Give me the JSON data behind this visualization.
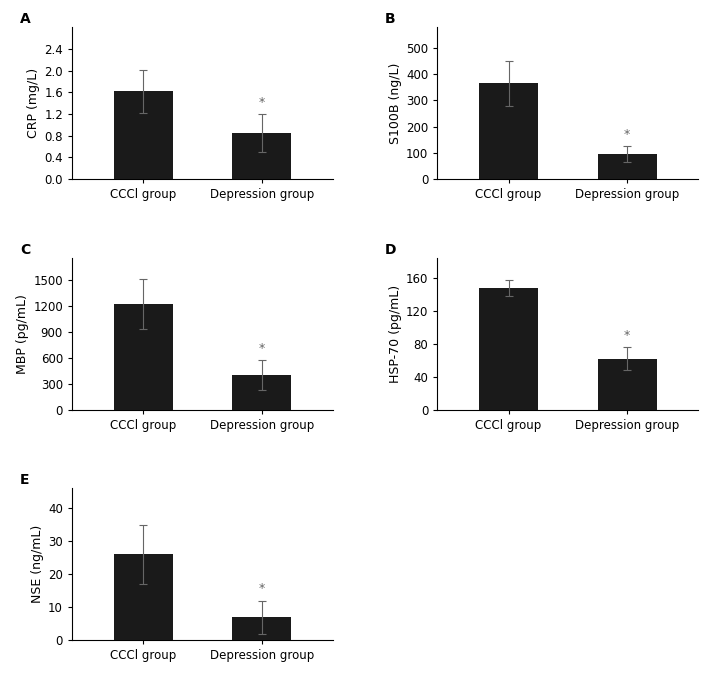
{
  "subplots": [
    {
      "label": "A",
      "ylabel": "CRP (mg/L)",
      "categories": [
        "CCCl group",
        "Depression group"
      ],
      "values": [
        1.62,
        0.85
      ],
      "errors": [
        0.4,
        0.35
      ],
      "ylim": [
        0,
        2.8
      ],
      "yticks": [
        0.0,
        0.4,
        0.8,
        1.2,
        1.6,
        2.0,
        2.4
      ],
      "star_idx": 1
    },
    {
      "label": "B",
      "ylabel": "S100B (ng/L)",
      "categories": [
        "CCCl group",
        "Depression group"
      ],
      "values": [
        365,
        95
      ],
      "errors": [
        85,
        30
      ],
      "ylim": [
        0,
        580
      ],
      "yticks": [
        0,
        100,
        200,
        300,
        400,
        500
      ],
      "star_idx": 1
    },
    {
      "label": "C",
      "ylabel": "MBP (pg/mL)",
      "categories": [
        "CCCl group",
        "Depression group"
      ],
      "values": [
        1220,
        400
      ],
      "errors": [
        290,
        170
      ],
      "ylim": [
        0,
        1750
      ],
      "yticks": [
        0,
        300,
        600,
        900,
        1200,
        1500
      ],
      "star_idx": 1
    },
    {
      "label": "D",
      "ylabel": "HSP-70 (pg/mL)",
      "categories": [
        "CCCl group",
        "Depression group"
      ],
      "values": [
        148,
        62
      ],
      "errors": [
        10,
        14
      ],
      "ylim": [
        0,
        185
      ],
      "yticks": [
        0,
        40,
        80,
        120,
        160
      ],
      "star_idx": 1
    },
    {
      "label": "E",
      "ylabel": "NSE (ng/mL)",
      "categories": [
        "CCCl group",
        "Depression group"
      ],
      "values": [
        26,
        7
      ],
      "errors": [
        9,
        5
      ],
      "ylim": [
        0,
        46
      ],
      "yticks": [
        0,
        10,
        20,
        30,
        40
      ],
      "star_idx": 1
    }
  ],
  "bar_color": "#1a1a1a",
  "bar_width": 0.5,
  "error_color": "#666666",
  "star_color": "#666666",
  "bg_color": "#ffffff",
  "tick_fontsize": 8.5,
  "label_fontsize": 9,
  "subplot_label_fontsize": 10
}
